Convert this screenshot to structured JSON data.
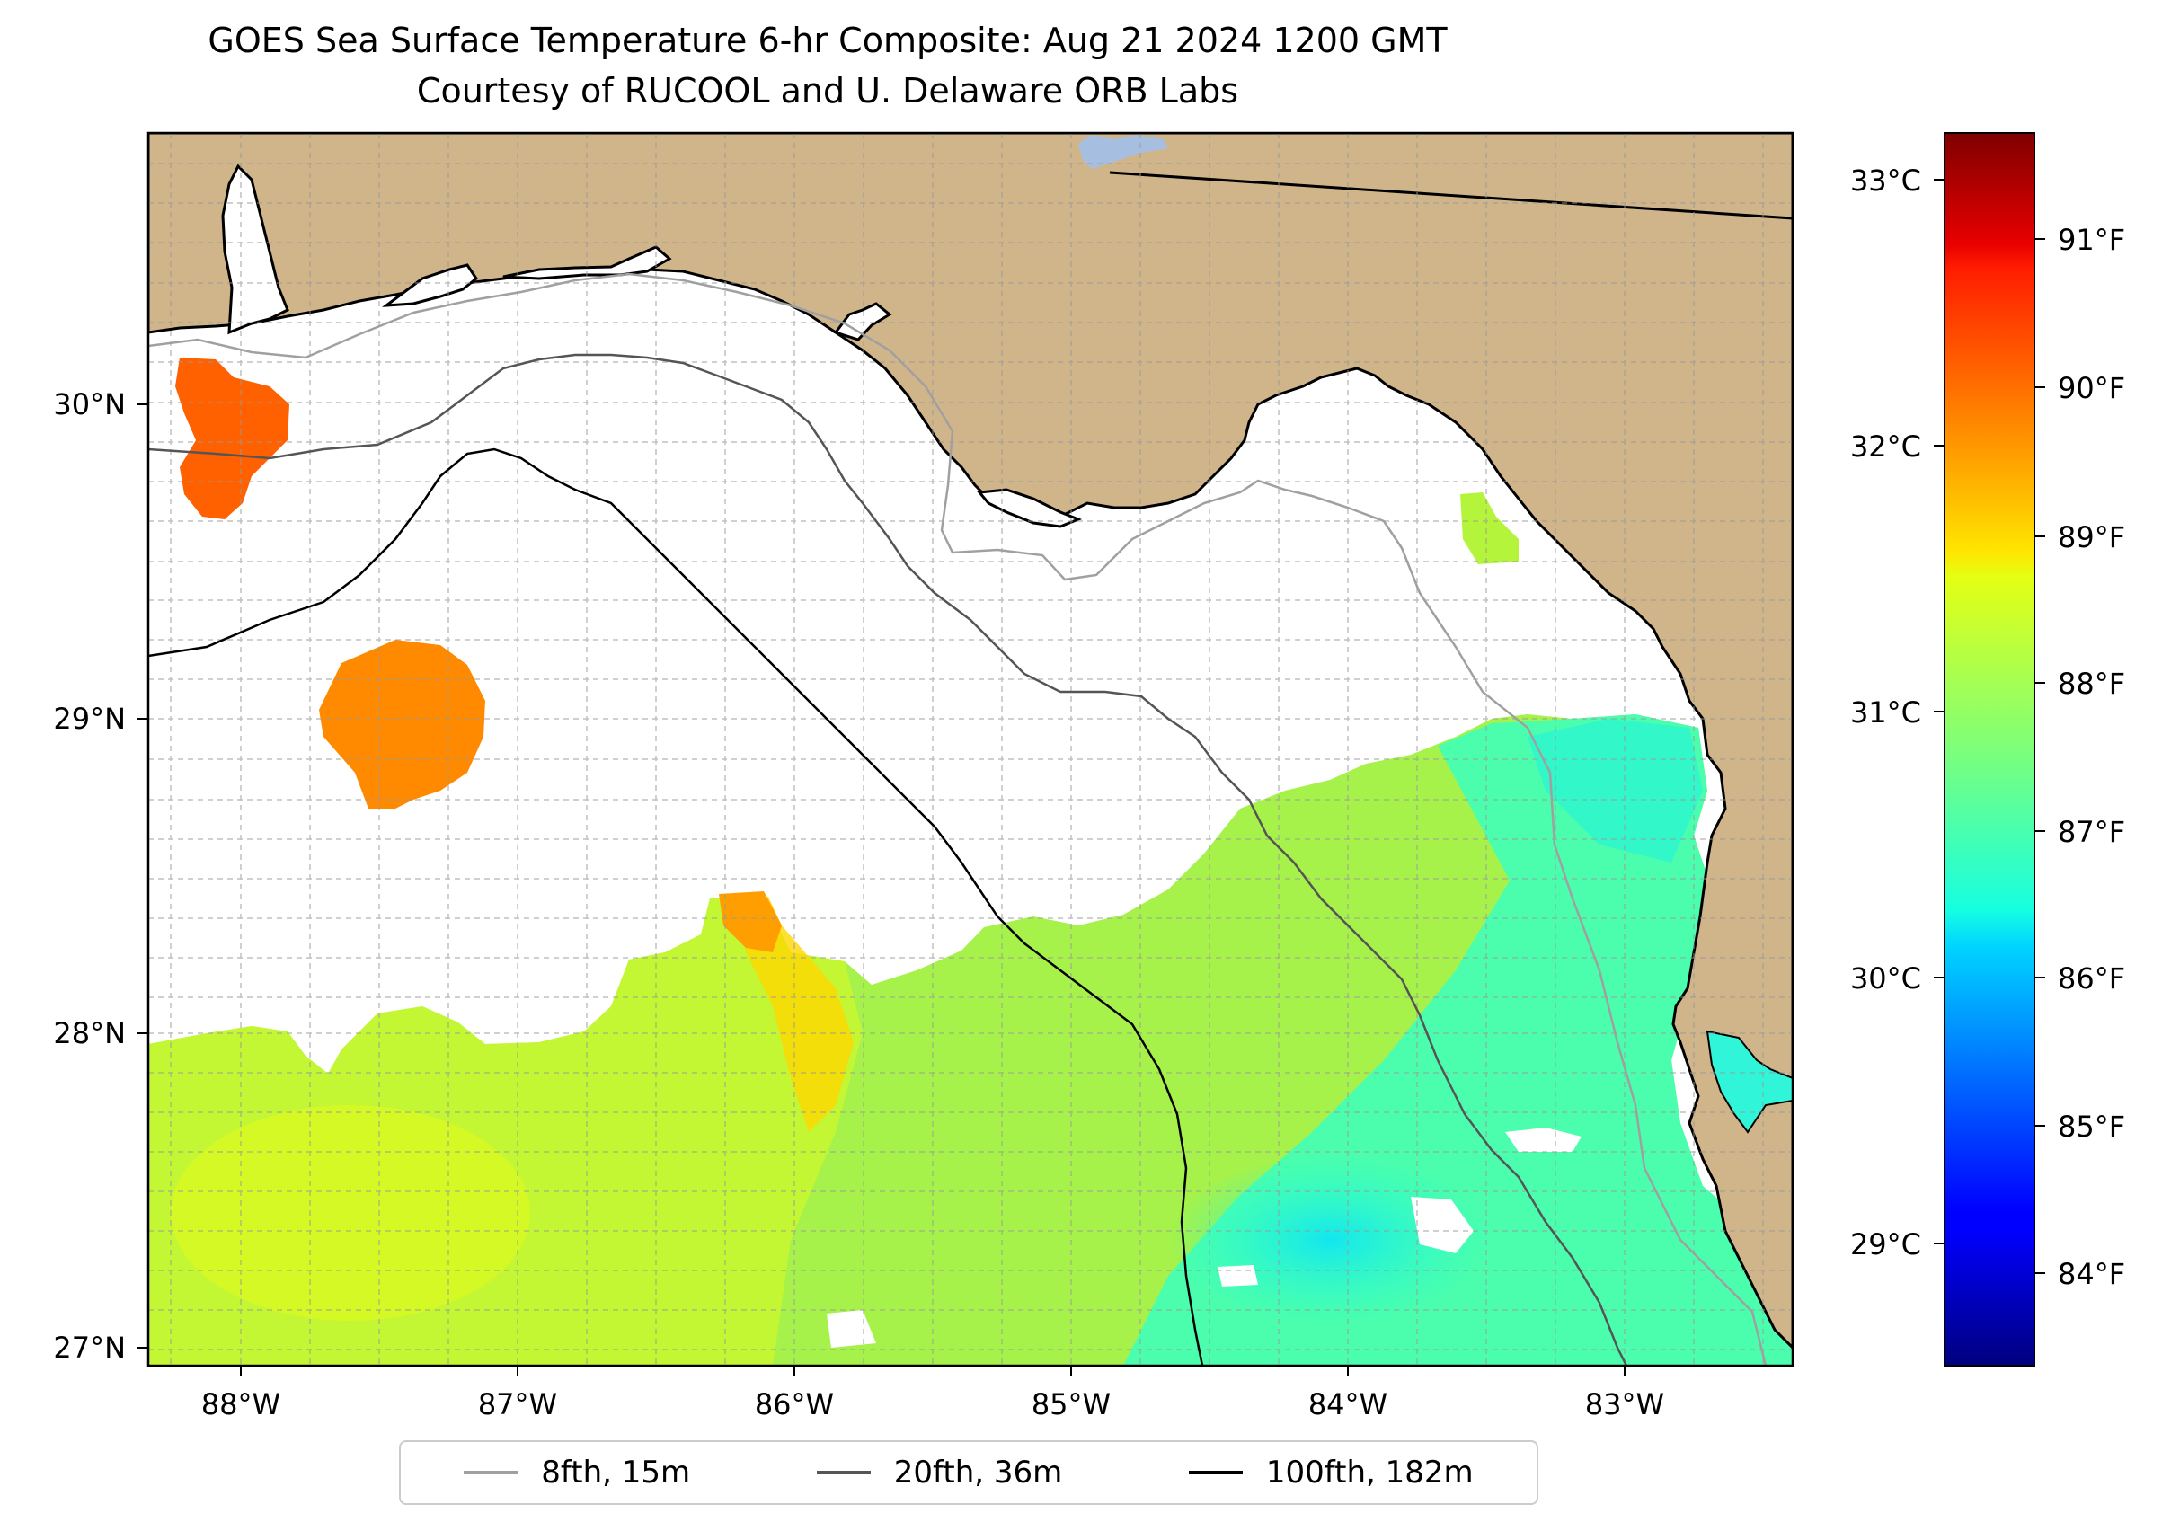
{
  "title_line1": "GOES Sea Surface Temperature 6-hr Composite: Aug 21 2024 1200 GMT",
  "title_line2": "Courtesy of RUCOOL and U. Delaware ORB Labs",
  "map": {
    "lon_ticks": [
      "88°W",
      "87°W",
      "86°W",
      "85°W",
      "84°W",
      "83°W"
    ],
    "lat_ticks": [
      "30°N",
      "29°N",
      "28°N",
      "27°N"
    ],
    "land_color": "#d0b48a",
    "gridlines": true
  },
  "colorbar": {
    "celsius_ticks": [
      "33°C",
      "32°C",
      "31°C",
      "30°C",
      "29°C"
    ],
    "fahrenheit_ticks": [
      "91°F",
      "90°F",
      "89°F",
      "88°F",
      "87°F",
      "86°F",
      "85°F",
      "84°F"
    ],
    "colormap": "jet",
    "range_c": [
      28.5,
      33.2
    ]
  },
  "legend": {
    "items": [
      {
        "label": "8fth, 15m",
        "color": "#a0a0a0"
      },
      {
        "label": "20fth, 36m",
        "color": "#555555"
      },
      {
        "label": "100fth, 182m",
        "color": "#000000"
      }
    ]
  }
}
